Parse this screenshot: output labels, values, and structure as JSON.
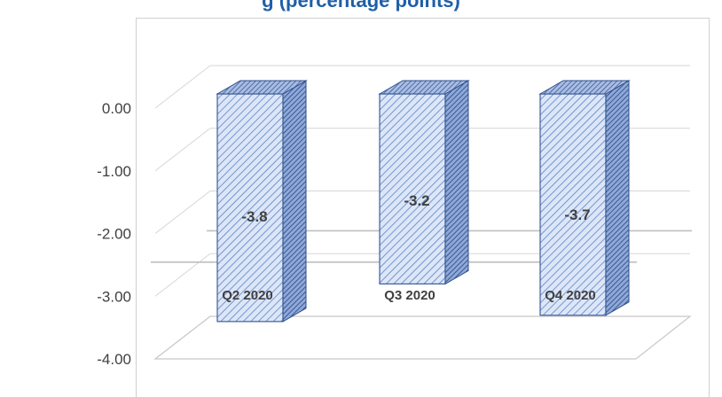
{
  "chart_data": {
    "type": "bar",
    "title": "",
    "xlabel": "",
    "ylabel": "",
    "categories": [
      "Q2 2020",
      "Q3 2020",
      "Q4 2020"
    ],
    "values": [
      -3.8,
      -3.2,
      -3.7
    ],
    "data_labels": [
      "-3.8",
      "-3.2",
      "-3.7"
    ],
    "yticks": [
      "0.00",
      "-1.00",
      "-2.00",
      "-3.00",
      "-4.00"
    ],
    "ylim": [
      -4,
      0
    ],
    "grid": true,
    "style": "3d-column",
    "colors": {
      "bar_face": "#dce6f7",
      "bar_hatch": "#4a72b8",
      "bar_side": "#3f5f9e",
      "bar_top": "#5b7fc2"
    }
  },
  "header": {
    "title_fragment": "g  (percentage points)"
  }
}
